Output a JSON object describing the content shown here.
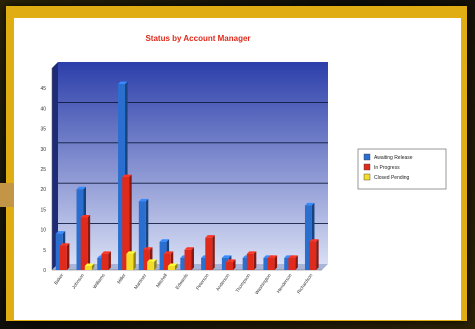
{
  "colors": {
    "frame": "#e0ad12",
    "plot_top": "#2c3faa",
    "plot_bottom": "#d8def4",
    "series_blue": "#2a6fd0",
    "series_red": "#e02a1c",
    "series_yellow": "#f2dd2a",
    "title": "#e0281a"
  },
  "chart_data": {
    "type": "bar",
    "title": "Status by Account Manager",
    "xlabel": "",
    "ylabel": "",
    "ylim": [
      0,
      50
    ],
    "yticks": [
      0,
      5,
      10,
      15,
      20,
      25,
      30,
      35,
      40,
      45
    ],
    "grid": true,
    "legend_position": "right",
    "categories": [
      "Baker",
      "Johnson",
      "Williams",
      "Miller",
      "Martinez",
      "Mitchell",
      "Edwards",
      "Peterson",
      "Anderson",
      "Thompson",
      "Washington",
      "Henderson",
      "Richardson"
    ],
    "series": [
      {
        "name": "Awaiting Release",
        "values": [
          9,
          20,
          3,
          46,
          17,
          7,
          3,
          3,
          3,
          3,
          3,
          3,
          16
        ]
      },
      {
        "name": "In Progress",
        "values": [
          6,
          13,
          4,
          23,
          5,
          4,
          5,
          8,
          2,
          4,
          3,
          3,
          7
        ]
      },
      {
        "name": "Closed Pending",
        "values": [
          0,
          1,
          0,
          4,
          2,
          1,
          0,
          0,
          0,
          0,
          0,
          0,
          0
        ]
      }
    ]
  }
}
